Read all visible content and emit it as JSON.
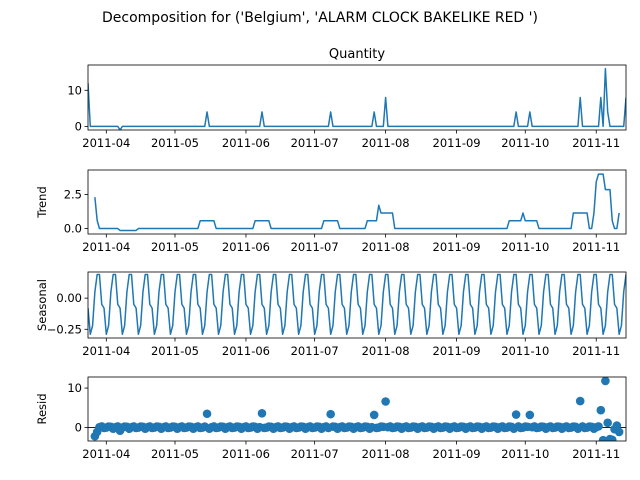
{
  "chart_data": {
    "type": "line",
    "suptitle": "Decomposition for ('Belgium', 'ALARM CLOCK BAKELIKE RED ')",
    "line_color": "#1f77b4",
    "x_range": [
      "2011-03-24",
      "2011-11-14"
    ],
    "x_ticks": [
      "2011-04",
      "2011-05",
      "2011-06",
      "2011-07",
      "2011-08",
      "2011-09",
      "2011-10",
      "2011-11"
    ],
    "grid": false,
    "panels": [
      {
        "key": "observed",
        "title": "Quantity",
        "ylabel": "",
        "kind": "line",
        "ylim": [
          -1,
          17
        ],
        "yticks": [
          {
            "v": 0,
            "label": "0"
          },
          {
            "v": 10,
            "label": "10"
          }
        ],
        "points": [
          [
            "2011-03-24",
            12
          ],
          [
            "2011-03-25",
            0
          ],
          [
            "2011-04-06",
            0
          ],
          [
            "2011-04-07",
            -1
          ],
          [
            "2011-04-08",
            0
          ],
          [
            "2011-05-14",
            0
          ],
          [
            "2011-05-15",
            4
          ],
          [
            "2011-05-16",
            0
          ],
          [
            "2011-06-07",
            0
          ],
          [
            "2011-06-08",
            4
          ],
          [
            "2011-06-09",
            0
          ],
          [
            "2011-07-07",
            0
          ],
          [
            "2011-07-08",
            4
          ],
          [
            "2011-07-09",
            0
          ],
          [
            "2011-07-26",
            0
          ],
          [
            "2011-07-27",
            4
          ],
          [
            "2011-07-28",
            0
          ],
          [
            "2011-07-31",
            0
          ],
          [
            "2011-08-01",
            8
          ],
          [
            "2011-08-02",
            0
          ],
          [
            "2011-09-26",
            0
          ],
          [
            "2011-09-27",
            4
          ],
          [
            "2011-09-28",
            0
          ],
          [
            "2011-10-02",
            0
          ],
          [
            "2011-10-03",
            4
          ],
          [
            "2011-10-04",
            0
          ],
          [
            "2011-10-24",
            0
          ],
          [
            "2011-10-25",
            8
          ],
          [
            "2011-10-26",
            0
          ],
          [
            "2011-11-02",
            0
          ],
          [
            "2011-11-03",
            8
          ],
          [
            "2011-11-04",
            0
          ],
          [
            "2011-11-05",
            16
          ],
          [
            "2011-11-06",
            4
          ],
          [
            "2011-11-07",
            0
          ],
          [
            "2011-11-13",
            0
          ],
          [
            "2011-11-14",
            8
          ]
        ]
      },
      {
        "key": "trend",
        "title": "",
        "ylabel": "Trend",
        "kind": "line",
        "ylim": [
          -0.4,
          4.3
        ],
        "yticks": [
          {
            "v": 0,
            "label": "0.0"
          },
          {
            "v": 2.5,
            "label": "2.5"
          }
        ],
        "points": [
          [
            "2011-03-27",
            2.3
          ],
          [
            "2011-03-28",
            0.6
          ],
          [
            "2011-03-29",
            0
          ],
          [
            "2011-04-06",
            0
          ],
          [
            "2011-04-07",
            -0.14
          ],
          [
            "2011-04-14",
            -0.14
          ],
          [
            "2011-04-15",
            0
          ],
          [
            "2011-05-11",
            0
          ],
          [
            "2011-05-12",
            0.57
          ],
          [
            "2011-05-18",
            0.57
          ],
          [
            "2011-05-19",
            0
          ],
          [
            "2011-06-04",
            0
          ],
          [
            "2011-06-05",
            0.57
          ],
          [
            "2011-06-11",
            0.57
          ],
          [
            "2011-06-12",
            0
          ],
          [
            "2011-07-04",
            0
          ],
          [
            "2011-07-05",
            0.57
          ],
          [
            "2011-07-11",
            0.57
          ],
          [
            "2011-07-12",
            0
          ],
          [
            "2011-07-23",
            0
          ],
          [
            "2011-07-24",
            0.57
          ],
          [
            "2011-07-28",
            0.57
          ],
          [
            "2011-07-29",
            1.71
          ],
          [
            "2011-07-30",
            1.14
          ],
          [
            "2011-08-04",
            1.14
          ],
          [
            "2011-08-05",
            0
          ],
          [
            "2011-09-23",
            0
          ],
          [
            "2011-09-24",
            0.57
          ],
          [
            "2011-09-29",
            0.57
          ],
          [
            "2011-09-30",
            1.14
          ],
          [
            "2011-10-01",
            0.57
          ],
          [
            "2011-10-06",
            0.57
          ],
          [
            "2011-10-07",
            0
          ],
          [
            "2011-10-21",
            0
          ],
          [
            "2011-10-22",
            1.14
          ],
          [
            "2011-10-28",
            1.14
          ],
          [
            "2011-10-29",
            0
          ],
          [
            "2011-10-30",
            0
          ],
          [
            "2011-10-31",
            1.14
          ],
          [
            "2011-11-01",
            3.43
          ],
          [
            "2011-11-02",
            4.0
          ],
          [
            "2011-11-04",
            4.0
          ],
          [
            "2011-11-05",
            2.86
          ],
          [
            "2011-11-07",
            2.86
          ],
          [
            "2011-11-08",
            0.57
          ],
          [
            "2011-11-09",
            0
          ],
          [
            "2011-11-10",
            0
          ],
          [
            "2011-11-11",
            1.14
          ]
        ]
      },
      {
        "key": "seasonal",
        "title": "",
        "ylabel": "Seasonal",
        "kind": "seasonal",
        "ylim": [
          -0.32,
          0.21
        ],
        "yticks": [
          {
            "v": 0,
            "label": "0.00"
          },
          {
            "v": -0.25,
            "label": "−0.25"
          }
        ],
        "start": "2011-03-24",
        "end": "2011-11-14",
        "period_values": [
          -0.08,
          -0.29,
          -0.22,
          0.05,
          0.19,
          0.19,
          -0.05
        ]
      },
      {
        "key": "resid",
        "title": "",
        "ylabel": "Resid",
        "kind": "scatter",
        "ylim": [
          -3.4,
          12.8
        ],
        "yticks": [
          {
            "v": 0,
            "label": "0"
          },
          {
            "v": 10,
            "label": "10"
          }
        ],
        "base_start": "2011-03-27",
        "base_end": "2011-11-11",
        "base_pattern": [
          0.2,
          -0.3,
          0.1,
          0.3,
          -0.1,
          0.0,
          0.25
        ],
        "overrides": [
          [
            "2011-03-27",
            -2.2
          ],
          [
            "2011-03-28",
            -1.1
          ],
          [
            "2011-04-07",
            -0.8
          ],
          [
            "2011-05-15",
            3.5
          ],
          [
            "2011-06-08",
            3.6
          ],
          [
            "2011-07-08",
            3.4
          ],
          [
            "2011-07-27",
            3.2
          ],
          [
            "2011-08-01",
            6.6
          ],
          [
            "2011-09-27",
            3.3
          ],
          [
            "2011-10-03",
            3.2
          ],
          [
            "2011-10-25",
            6.7
          ],
          [
            "2011-11-03",
            4.4
          ],
          [
            "2011-11-05",
            11.8
          ],
          [
            "2011-11-04",
            -3.2
          ],
          [
            "2011-11-06",
            1.2
          ],
          [
            "2011-11-07",
            -2.9
          ],
          [
            "2011-11-08",
            -3.1
          ],
          [
            "2011-11-09",
            -0.4
          ],
          [
            "2011-11-10",
            0.5
          ],
          [
            "2011-11-11",
            -1.1
          ]
        ]
      }
    ]
  }
}
